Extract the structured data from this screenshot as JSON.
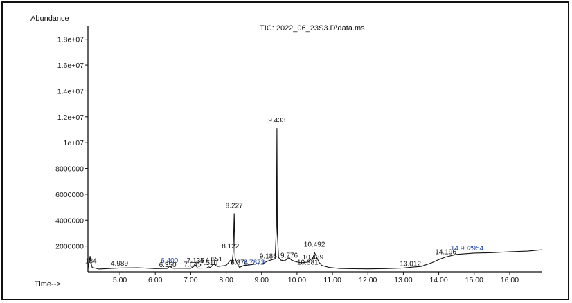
{
  "ylabel": "Abundance",
  "title": "TIC: 2022_06_23S3.D\\data.ms",
  "xlabel": "Time-->",
  "colors": {
    "trace": "#111111",
    "label_blue": "#1a3f9e",
    "frame": "#111111"
  },
  "chart_data": {
    "type": "line",
    "title": "TIC: 2022_06_23S3.D\\data.ms",
    "xlabel": "Time-->",
    "ylabel": "Abundance",
    "xlim": [
      4.1,
      16.9
    ],
    "ylim": [
      0,
      19000000
    ],
    "x_ticks": [
      5.0,
      6.0,
      7.0,
      8.0,
      9.0,
      10.0,
      11.0,
      12.0,
      13.0,
      14.0,
      15.0,
      16.0
    ],
    "x_tick_labels": [
      "5.00",
      "6.00",
      "7.00",
      "8.00",
      "9.00",
      "10.00",
      "11.00",
      "12.00",
      "13.00",
      "14.00",
      "15.00",
      "16.00"
    ],
    "y_ticks": [
      2000000,
      4000000,
      6000000,
      8000000,
      10000000,
      12000000,
      14000000,
      16000000,
      18000000
    ],
    "y_tick_labels": [
      "2000000",
      "4000000",
      "6000000",
      "8000000",
      "1e+07",
      "1.2e+07",
      "1.4e+07",
      "1.6e+07",
      "1.8e+07"
    ],
    "grid": false,
    "series": [
      {
        "x": [
          4.1,
          4.16,
          4.184,
          4.22,
          4.4,
          4.989,
          5.5,
          6.0,
          6.35,
          6.4,
          6.5,
          7.0,
          7.135,
          7.2,
          7.45,
          7.51,
          7.55,
          7.651,
          7.75,
          8.0,
          8.122,
          8.16,
          8.2,
          8.227,
          8.25,
          8.3,
          8.374,
          8.5,
          8.7,
          8.9,
          9.0,
          9.186,
          9.3,
          9.38,
          9.42,
          9.433,
          9.445,
          9.48,
          9.55,
          9.65,
          9.776,
          9.85,
          9.95,
          10.1,
          10.3,
          10.381,
          10.45,
          10.492,
          10.55,
          10.62,
          10.7,
          10.9,
          11.2,
          11.6,
          12.0,
          12.5,
          13.0,
          13.3,
          13.5,
          13.8,
          14.0,
          14.196,
          14.5,
          15.0,
          15.5,
          16.0,
          16.5,
          16.9
        ],
        "y": [
          250000,
          1200000,
          700000,
          350000,
          220000,
          300000,
          320000,
          250000,
          260000,
          450000,
          280000,
          270000,
          520000,
          290000,
          300000,
          380000,
          330000,
          600000,
          420000,
          500000,
          900000,
          600000,
          1500000,
          4500000,
          1100000,
          700000,
          350000,
          500000,
          550000,
          650000,
          600000,
          850000,
          950000,
          1000000,
          3500000,
          11100000,
          3000000,
          1100000,
          900000,
          850000,
          1100000,
          900000,
          800000,
          700000,
          750000,
          950000,
          1050000,
          1500000,
          1150000,
          750000,
          500000,
          350000,
          260000,
          240000,
          230000,
          250000,
          300000,
          380000,
          420000,
          700000,
          950000,
          1150000,
          1350000,
          1450000,
          1480000,
          1550000,
          1600000,
          1700000
        ]
      }
    ],
    "peak_labels": [
      {
        "text": "184",
        "x": 4.184,
        "y": 560000,
        "color": "black"
      },
      {
        "text": "4.989",
        "x": 4.989,
        "y": 380000,
        "color": "black"
      },
      {
        "text": "6.350",
        "x": 6.35,
        "y": 280000,
        "color": "black"
      },
      {
        "text": "6.400",
        "x": 6.4,
        "y": 600000,
        "color": "blue"
      },
      {
        "text": "7.045",
        "x": 7.05,
        "y": 300000,
        "color": "black"
      },
      {
        "text": "7.135",
        "x": 7.135,
        "y": 600000,
        "color": "black"
      },
      {
        "text": "7.510",
        "x": 7.51,
        "y": 420000,
        "color": "black"
      },
      {
        "text": "7.651",
        "x": 7.651,
        "y": 700000,
        "color": "black"
      },
      {
        "text": "8.122",
        "x": 8.122,
        "y": 1700000,
        "color": "black"
      },
      {
        "text": "8.227",
        "x": 8.227,
        "y": 4850000,
        "color": "black"
      },
      {
        "text": "8.374",
        "x": 8.374,
        "y": 450000,
        "color": "black"
      },
      {
        "text": "8.7873",
        "x": 8.79,
        "y": 450000,
        "color": "blue"
      },
      {
        "text": "9.186",
        "x": 9.186,
        "y": 950000,
        "color": "black"
      },
      {
        "text": "9.433",
        "x": 9.433,
        "y": 11450000,
        "color": "black"
      },
      {
        "text": "9.776",
        "x": 9.776,
        "y": 1000000,
        "color": "black"
      },
      {
        "text": "10.381",
        "x": 10.3,
        "y": 450000,
        "color": "black"
      },
      {
        "text": "10.439",
        "x": 10.45,
        "y": 850000,
        "color": "black"
      },
      {
        "text": "10.492",
        "x": 10.492,
        "y": 1850000,
        "color": "black"
      },
      {
        "text": "13.012",
        "x": 13.2,
        "y": 350000,
        "color": "black"
      },
      {
        "text": "14.196",
        "x": 14.196,
        "y": 1250000,
        "color": "black"
      },
      {
        "text": "14.902954",
        "x": 14.8,
        "y": 1550000,
        "color": "blue"
      }
    ]
  }
}
